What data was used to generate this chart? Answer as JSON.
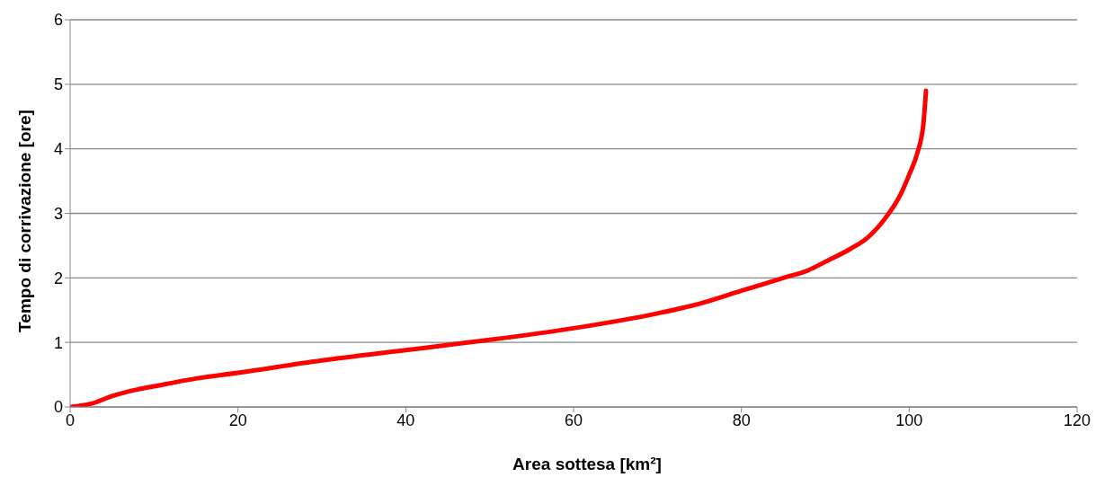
{
  "chart_data": {
    "type": "line",
    "xlabel": "Area sottesa [km²]",
    "ylabel": "Tempo di corrivazione [ore]",
    "x": [
      0,
      2.5,
      5,
      8,
      10,
      15,
      20,
      30,
      40,
      45,
      50,
      60,
      70,
      75,
      80,
      85,
      88,
      90,
      93,
      95,
      97,
      99,
      100,
      101,
      101.7,
      102
    ],
    "series": [
      {
        "color": "#ff0000",
        "values": [
          0,
          0.05,
          0.17,
          0.27,
          0.32,
          0.44,
          0.53,
          0.72,
          0.88,
          0.96,
          1.04,
          1.22,
          1.45,
          1.6,
          1.8,
          2.0,
          2.12,
          2.25,
          2.45,
          2.62,
          2.9,
          3.3,
          3.6,
          3.95,
          4.4,
          4.9
        ]
      }
    ],
    "xlim": [
      0,
      120
    ],
    "xticks": [
      0,
      20,
      40,
      60,
      80,
      100,
      120
    ],
    "ylim": [
      0,
      6
    ],
    "yticks": [
      0,
      1,
      2,
      3,
      4,
      5,
      6
    ],
    "grid": "y",
    "legend": false,
    "marker": "none",
    "line_style": "solid"
  }
}
